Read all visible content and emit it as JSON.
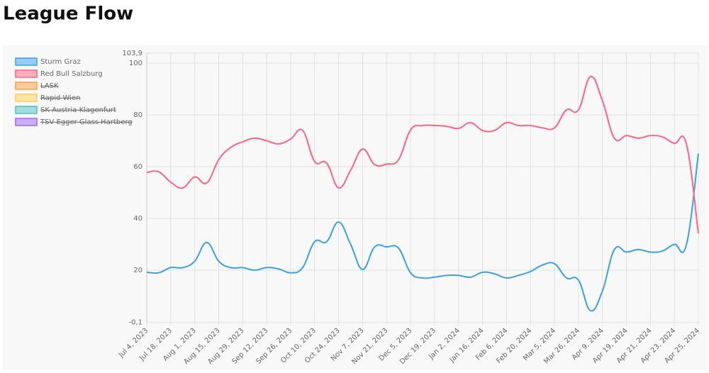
{
  "chart_data": {
    "type": "line",
    "title": "League Flow",
    "categories": [
      "Jul 4, 2023",
      null,
      "Jul 18, 2023",
      null,
      "Aug 1, 2023",
      null,
      "Aug 15, 2023",
      null,
      "Aug 29, 2023",
      null,
      "Sep 12, 2023",
      null,
      "Sep 26, 2023",
      null,
      "Oct 10, 2023",
      null,
      "Oct 24, 2023",
      null,
      "Nov 7, 2023",
      null,
      "Nov 21, 2023",
      null,
      "Dec 5, 2023",
      null,
      "Dec 19, 2023",
      null,
      "Jan 2, 2024",
      null,
      "Jan 16, 2024",
      null,
      "Feb 6, 2024",
      null,
      "Feb 20, 2024",
      null,
      "Mar 5, 2024",
      null,
      "Mar 26, 2024",
      null,
      "Apr 9, 2024",
      null,
      "Apr 19, 2024",
      null,
      "Apr 21, 2024",
      null,
      "Apr 23, 2024",
      null,
      "Apr 25, 2024"
    ],
    "series": [
      {
        "name": "Sturm Graz",
        "color": "#36a2eb",
        "values": [
          19.2,
          19,
          21,
          21,
          23.5,
          30.7,
          23.5,
          21,
          21,
          20,
          21,
          20.5,
          19,
          21,
          31,
          31,
          38.6,
          30,
          20.3,
          29,
          29,
          28.5,
          19,
          17,
          17.3,
          18,
          18,
          17.3,
          19.2,
          18.6,
          17,
          18,
          19.5,
          22,
          22.5,
          17,
          16.2,
          4.4,
          12,
          28,
          27,
          28,
          27,
          27.4,
          30,
          29.8,
          65
        ]
      },
      {
        "name": "Red Bull Salzburg",
        "color": "#ff6384",
        "values": [
          57.8,
          58,
          54,
          51.8,
          56,
          53.7,
          62.7,
          67.4,
          69.6,
          71,
          70,
          68.8,
          70.7,
          74,
          62,
          61.4,
          51.8,
          58.6,
          66.8,
          60.8,
          61,
          62.7,
          74.2,
          75.9,
          75.9,
          75.6,
          74.8,
          77,
          74,
          74,
          77,
          75.9,
          75.9,
          75,
          75,
          81.9,
          81.9,
          94.8,
          85.5,
          71,
          72,
          71,
          72,
          71.5,
          69,
          68.8,
          34.2
        ]
      },
      {
        "name": "LASK",
        "color": "#ff9f40",
        "hidden": true
      },
      {
        "name": "Rapid Wien",
        "color": "#ffcd56",
        "hidden": true
      },
      {
        "name": "SK Austria Klagenfurt",
        "color": "#4bc0c0",
        "hidden": true
      },
      {
        "name": "TSV Egger Glass Hartberg",
        "color": "#9966ff",
        "hidden": true
      }
    ],
    "ylim": [
      -0.1,
      103.9
    ],
    "yticks": [
      {
        "value": -0.1,
        "label": "-0,1"
      },
      20,
      40,
      60,
      80,
      100,
      {
        "value": 103.9,
        "label": "103,9"
      }
    ],
    "grid": true,
    "legend": "left"
  }
}
